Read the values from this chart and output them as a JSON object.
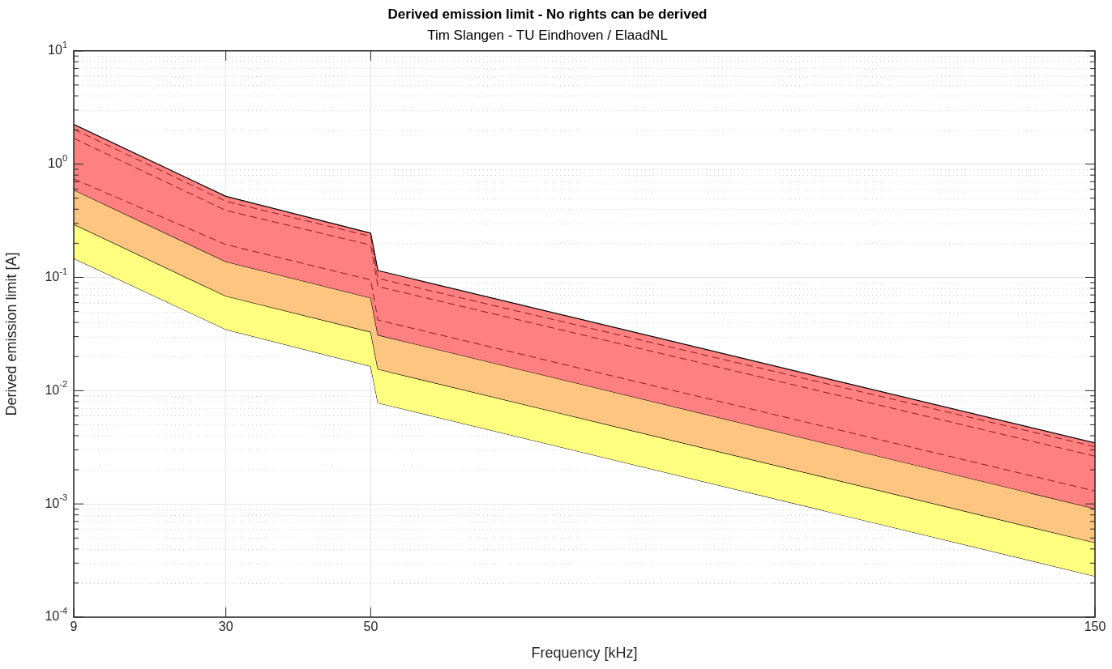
{
  "chart_data": {
    "type": "area",
    "title": "Derived emission limit - No rights can be derived",
    "subtitle": "Tim Slangen - TU Eindhoven / ElaadNL",
    "xlabel": "Frequency [kHz]",
    "ylabel": "Derived emission limit [A]",
    "x": [
      9,
      30,
      50,
      51,
      150
    ],
    "series": [
      {
        "type": "line",
        "color": "#000000",
        "values": [
          0.147,
          0.0347,
          0.0164,
          0.0078,
          0.00023
        ]
      },
      {
        "color": "#ffff80",
        "values": [
          0.295,
          0.0685,
          0.033,
          0.0155,
          0.000455
        ]
      },
      {
        "color": "#fec580",
        "values": [
          0.593,
          0.138,
          0.066,
          0.031,
          0.00091
        ]
      },
      {
        "color": "#ff8080",
        "values": [
          2.24,
          0.52,
          0.246,
          0.115,
          0.00345
        ]
      },
      {
        "type": "line",
        "color": "#8b1a1a",
        "line_style": "dashed",
        "values": [
          2.03,
          0.47,
          0.23,
          0.098,
          0.0032
        ]
      },
      {
        "type": "line",
        "color": "#8b1a1a",
        "line_style": "dashed",
        "values": [
          1.69,
          0.39,
          0.193,
          0.083,
          0.00264
        ]
      },
      {
        "type": "line",
        "color": "#8b1a1a",
        "line_style": "dashed",
        "values": [
          0.74,
          0.195,
          0.095,
          0.042,
          0.0013
        ]
      }
    ],
    "log": "y",
    "xlim": [
      9,
      150
    ],
    "xticks": [
      9,
      30,
      50,
      150
    ],
    "ylim": [
      0.0001,
      10
    ],
    "yticks": [
      {
        "value": 0.0001,
        "label": "10$^{-4}$"
      },
      {
        "value": 0.001,
        "label": "10$^{-3}$"
      },
      {
        "value": 0.01,
        "label": "10$^{-2}$"
      },
      {
        "value": 0.1,
        "label": "10$^{-1}$"
      },
      {
        "value": 1,
        "label": "10$^{0}$"
      },
      {
        "value": 10,
        "label": "10$^{1}$"
      }
    ],
    "grid": true,
    "legend": false,
    "marker": "none"
  }
}
